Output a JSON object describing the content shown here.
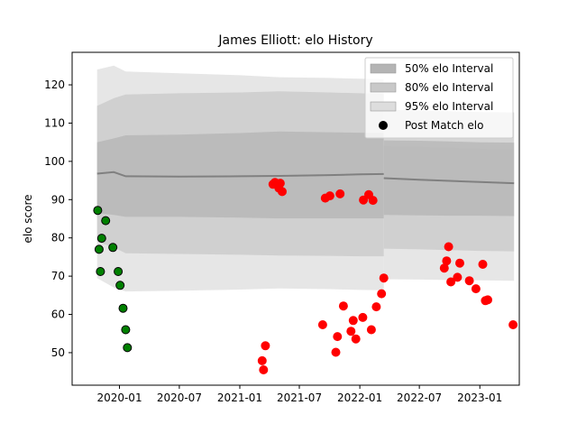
{
  "chart_data": {
    "type": "scatter",
    "title": "James Elliott: elo History",
    "xlabel": "",
    "ylabel": "elo score",
    "xlim": [
      "2019-08-10",
      "2023-05-01"
    ],
    "ylim": [
      41.5,
      128.5
    ],
    "x_ticks": [
      {
        "date": "2020-01-01",
        "label": "2020-01"
      },
      {
        "date": "2020-07-01",
        "label": "2020-07"
      },
      {
        "date": "2021-01-01",
        "label": "2021-01"
      },
      {
        "date": "2021-07-01",
        "label": "2021-07"
      },
      {
        "date": "2022-01-01",
        "label": "2022-01"
      },
      {
        "date": "2022-07-01",
        "label": "2022-07"
      },
      {
        "date": "2023-01-01",
        "label": "2023-01"
      }
    ],
    "y_ticks": [
      50,
      60,
      70,
      80,
      90,
      100,
      110,
      120
    ],
    "grid": false,
    "legend_position": "top-right",
    "legend": [
      {
        "label": "50% elo Interval",
        "kind": "band",
        "color": "#b4b4b4",
        "key": "band50"
      },
      {
        "label": "80% elo Interval",
        "kind": "band",
        "color": "#c8c8c8",
        "key": "band80"
      },
      {
        "label": "95% elo Interval",
        "kind": "band",
        "color": "#dddddd",
        "key": "band95"
      },
      {
        "label": "Post Match elo",
        "kind": "marker",
        "color": "#000000",
        "key": "marker"
      }
    ],
    "colors": {
      "band50": "#b4b4b4",
      "band80": "#c8c8c8",
      "band95": "#dddddd",
      "mean_line": "#808080",
      "points_early": "#008000",
      "points_late": "#ff0000",
      "marker_edge": "#000000"
    },
    "bands_active": {
      "dates": [
        "2019-10-25",
        "2019-12-15",
        "2020-01-20",
        "2020-07-01",
        "2021-01-01",
        "2021-05-01",
        "2021-10-01",
        "2022-01-01",
        "2022-03-15"
      ],
      "mean": [
        96.8,
        97.2,
        96.1,
        96.0,
        96.1,
        96.2,
        96.4,
        96.6,
        96.7
      ],
      "q50_low": [
        86.5,
        86.0,
        85.5,
        85.5,
        85.3,
        85.1,
        85.1,
        85.1,
        85.1
      ],
      "q50_high": [
        105.0,
        106.0,
        106.8,
        107.0,
        107.4,
        107.8,
        107.6,
        107.5,
        107.5
      ],
      "q80_low": [
        79.0,
        77.5,
        76.0,
        75.8,
        75.6,
        75.4,
        75.3,
        75.2,
        75.2
      ],
      "q80_high": [
        114.5,
        116.5,
        117.5,
        117.8,
        118.0,
        118.3,
        118.0,
        117.8,
        117.6
      ],
      "q95_low": [
        69.5,
        67.0,
        66.0,
        66.2,
        66.5,
        66.8,
        66.6,
        66.4,
        66.3
      ],
      "q95_high": [
        124.0,
        125.0,
        123.5,
        123.0,
        122.5,
        122.0,
        121.8,
        121.6,
        121.5
      ]
    },
    "bands_extended": {
      "dates": [
        "2022-03-15",
        "2022-07-01",
        "2022-10-01",
        "2023-01-01",
        "2023-04-15"
      ],
      "mean": [
        95.6,
        95.2,
        94.9,
        94.6,
        94.3
      ],
      "q50_low": [
        86.0,
        85.9,
        85.8,
        85.8,
        85.7
      ],
      "q50_high": [
        105.5,
        105.4,
        105.2,
        105.0,
        104.9
      ],
      "q80_low": [
        77.2,
        77.0,
        76.8,
        76.6,
        76.5
      ],
      "q80_high": [
        113.5,
        113.3,
        113.1,
        112.9,
        112.8
      ],
      "q95_low": [
        69.2,
        69.1,
        69.0,
        68.9,
        68.8
      ],
      "q95_high": [
        104.0,
        103.8,
        103.6,
        103.3,
        103.1
      ]
    },
    "series": [
      {
        "color": "#008000",
        "points": [
          {
            "x": "2019-10-27",
            "y": 87.2
          },
          {
            "x": "2019-10-31",
            "y": 77.0
          },
          {
            "x": "2019-11-04",
            "y": 71.2
          },
          {
            "x": "2019-11-08",
            "y": 79.9
          },
          {
            "x": "2019-11-20",
            "y": 84.5
          },
          {
            "x": "2019-12-12",
            "y": 77.5
          },
          {
            "x": "2019-12-28",
            "y": 71.2
          },
          {
            "x": "2020-01-03",
            "y": 67.6
          },
          {
            "x": "2020-01-12",
            "y": 61.6
          },
          {
            "x": "2020-01-20",
            "y": 56.0
          },
          {
            "x": "2020-01-25",
            "y": 51.3
          }
        ]
      },
      {
        "color": "#ff0000",
        "points": [
          {
            "x": "2021-03-10",
            "y": 47.9
          },
          {
            "x": "2021-03-14",
            "y": 45.5
          },
          {
            "x": "2021-03-20",
            "y": 51.8
          },
          {
            "x": "2021-04-12",
            "y": 94.0
          },
          {
            "x": "2021-04-18",
            "y": 94.5
          },
          {
            "x": "2021-04-30",
            "y": 93.0
          },
          {
            "x": "2021-05-04",
            "y": 94.3
          },
          {
            "x": "2021-05-10",
            "y": 92.1
          },
          {
            "x": "2021-09-10",
            "y": 57.3
          },
          {
            "x": "2021-09-18",
            "y": 90.4
          },
          {
            "x": "2021-10-02",
            "y": 91.0
          },
          {
            "x": "2021-10-20",
            "y": 50.1
          },
          {
            "x": "2021-10-25",
            "y": 54.2
          },
          {
            "x": "2021-11-02",
            "y": 91.5
          },
          {
            "x": "2021-11-12",
            "y": 62.2
          },
          {
            "x": "2021-12-05",
            "y": 55.6
          },
          {
            "x": "2021-12-12",
            "y": 58.4
          },
          {
            "x": "2021-12-20",
            "y": 53.6
          },
          {
            "x": "2022-01-10",
            "y": 59.2
          },
          {
            "x": "2022-01-12",
            "y": 89.9
          },
          {
            "x": "2022-01-28",
            "y": 91.3
          },
          {
            "x": "2022-02-05",
            "y": 56.0
          },
          {
            "x": "2022-02-10",
            "y": 89.8
          },
          {
            "x": "2022-02-20",
            "y": 62.0
          },
          {
            "x": "2022-03-08",
            "y": 65.4
          },
          {
            "x": "2022-03-15",
            "y": 69.5
          },
          {
            "x": "2022-09-15",
            "y": 72.1
          },
          {
            "x": "2022-09-22",
            "y": 74.0
          },
          {
            "x": "2022-09-28",
            "y": 77.7
          },
          {
            "x": "2022-10-05",
            "y": 68.5
          },
          {
            "x": "2022-10-25",
            "y": 69.7
          },
          {
            "x": "2022-11-01",
            "y": 73.4
          },
          {
            "x": "2022-11-30",
            "y": 68.8
          },
          {
            "x": "2022-12-20",
            "y": 66.7
          },
          {
            "x": "2023-01-10",
            "y": 73.1
          },
          {
            "x": "2023-01-18",
            "y": 63.6
          },
          {
            "x": "2023-01-25",
            "y": 63.8
          },
          {
            "x": "2023-04-12",
            "y": 57.3
          }
        ]
      }
    ]
  }
}
